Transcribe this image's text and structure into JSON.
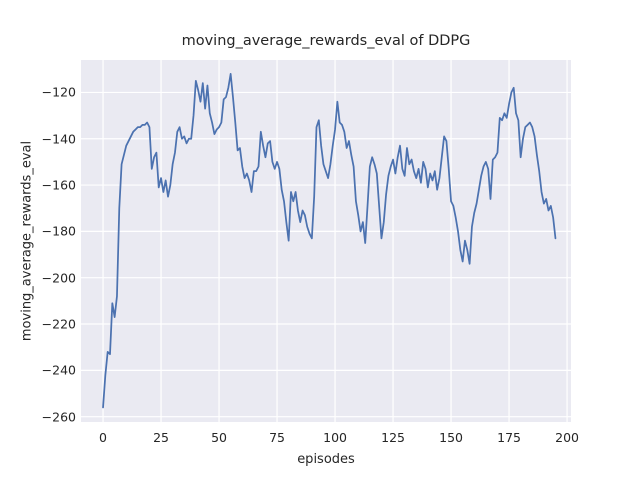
{
  "figure": {
    "title": "moving_average_rewards_eval of DDPG",
    "xlabel": "episodes",
    "ylabel": "moving_average_rewards_eval",
    "colors": {
      "figure_background": "#ffffff",
      "axes_background": "#eaeaf2",
      "grid": "#ffffff",
      "line": "#4c72b0",
      "text": "#262626"
    }
  },
  "chart_data": {
    "type": "line",
    "title": "moving_average_rewards_eval of DDPG",
    "xlabel": "episodes",
    "ylabel": "moving_average_rewards_eval",
    "grid": "on",
    "legend": "none",
    "xlim": [
      -9.5,
      201.7
    ],
    "ylim": [
      -262.3,
      -106.0
    ],
    "xticks": {
      "values": [
        0,
        25,
        50,
        75,
        100,
        125,
        150,
        175,
        200
      ],
      "labels": [
        "0",
        "25",
        "50",
        "75",
        "100",
        "125",
        "150",
        "175",
        "200"
      ]
    },
    "yticks": {
      "values": [
        -120,
        -140,
        -160,
        -180,
        -200,
        -220,
        -240,
        -260
      ],
      "labels": [
        "−120",
        "−140",
        "−160",
        "−180",
        "−200",
        "−220",
        "−240",
        "−260"
      ]
    },
    "series": [
      {
        "name": "moving_average_rewards_eval",
        "color": "#4c72b0",
        "x_start": 0,
        "x_step": 1,
        "values": [
          -256,
          -242,
          -232,
          -233,
          -211,
          -217,
          -208,
          -170,
          -151,
          -147,
          -143,
          -141,
          -139,
          -137,
          -136,
          -135,
          -135,
          -134,
          -134,
          -133,
          -135,
          -153,
          -148,
          -146,
          -161,
          -157,
          -163,
          -158,
          -165,
          -160,
          -151,
          -146,
          -137,
          -135,
          -140,
          -139,
          -142,
          -140,
          -140,
          -130,
          -115,
          -119,
          -124,
          -116,
          -127,
          -117,
          -129,
          -133,
          -138,
          -136,
          -135,
          -133,
          -123,
          -122,
          -118,
          -112,
          -122,
          -133,
          -145,
          -144,
          -152,
          -157,
          -155,
          -158,
          -163,
          -154,
          -154,
          -152,
          -137,
          -143,
          -148,
          -142,
          -141,
          -150,
          -153,
          -150,
          -153,
          -162,
          -167,
          -176,
          -184,
          -163,
          -167,
          -163,
          -171,
          -176,
          -171,
          -173,
          -178,
          -181,
          -183,
          -165,
          -135,
          -132,
          -143,
          -151,
          -154,
          -157,
          -151,
          -143,
          -136,
          -124,
          -133,
          -134,
          -137,
          -144,
          -141,
          -147,
          -152,
          -167,
          -173,
          -180,
          -176,
          -185,
          -169,
          -152,
          -148,
          -151,
          -155,
          -169,
          -183,
          -176,
          -164,
          -156,
          -152,
          -149,
          -155,
          -148,
          -143,
          -153,
          -156,
          -144,
          -151,
          -149,
          -154,
          -157,
          -153,
          -159,
          -150,
          -153,
          -161,
          -155,
          -158,
          -154,
          -162,
          -157,
          -148,
          -139,
          -141,
          -153,
          -167,
          -169,
          -174,
          -180,
          -188,
          -193,
          -184,
          -188,
          -194,
          -178,
          -172,
          -168,
          -162,
          -156,
          -152,
          -150,
          -153,
          -166,
          -149,
          -148,
          -146,
          -131,
          -132,
          -129,
          -131,
          -125,
          -120,
          -118,
          -129,
          -132,
          -148,
          -140,
          -135,
          -134,
          -133,
          -135,
          -139,
          -147,
          -154,
          -163,
          -168,
          -166,
          -171,
          -169,
          -174,
          -183
        ]
      }
    ]
  }
}
